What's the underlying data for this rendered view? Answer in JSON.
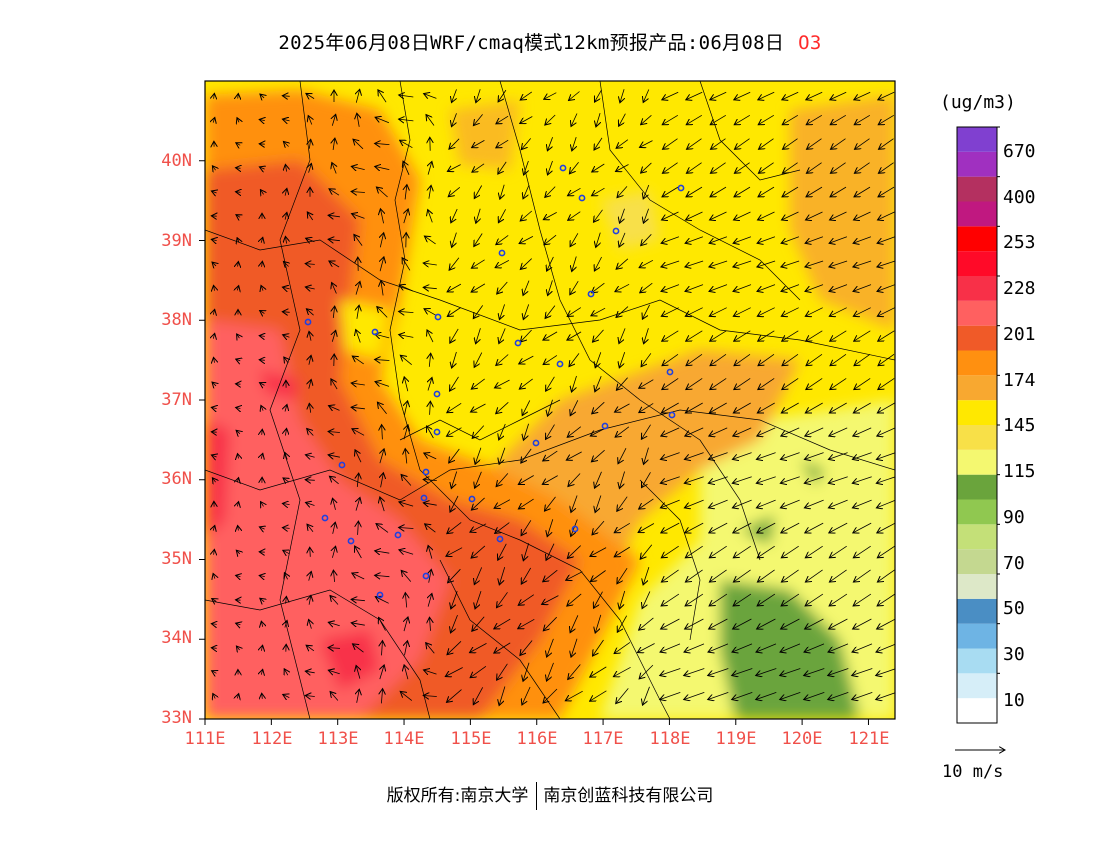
{
  "header": {
    "title": "2025年06月08日WRF/cmaq模式12km预报产品:06月08日",
    "pollutant": "O3"
  },
  "axes": {
    "y_ticks": [
      "40N",
      "39N",
      "38N",
      "37N",
      "36N",
      "35N",
      "34N",
      "33N"
    ],
    "x_ticks": [
      "111E",
      "112E",
      "113E",
      "114E",
      "115E",
      "116E",
      "117E",
      "118E",
      "119E",
      "120E",
      "121E"
    ],
    "lat_range": [
      33,
      41
    ],
    "lon_range": [
      111,
      121.4
    ],
    "tick_color": "#f0504a"
  },
  "colorbar": {
    "unit": "(ug/m3)",
    "colors": [
      "#ffffff",
      "#d6eef8",
      "#a8dcf2",
      "#6eb4e4",
      "#4a8ec4",
      "#dde8c8",
      "#c4d890",
      "#c4e078",
      "#90c850",
      "#6aa43c",
      "#f4f870",
      "#f8e048",
      "#ffe800",
      "#f8a830",
      "#ff9010",
      "#f05a28",
      "#ff6060",
      "#f83048",
      "#ff0a28",
      "#ff0000",
      "#c01880",
      "#b43060",
      "#a030c0",
      "#8040d0"
    ],
    "labels": [
      "10",
      "30",
      "50",
      "70",
      "90",
      "115",
      "145",
      "174",
      "201",
      "228",
      "253",
      "400",
      "670"
    ]
  },
  "vector_legend": {
    "label": "10 m/s"
  },
  "footer": {
    "left": "版权所有:南京大学",
    "right": "南京创蓝科技有限公司"
  }
}
